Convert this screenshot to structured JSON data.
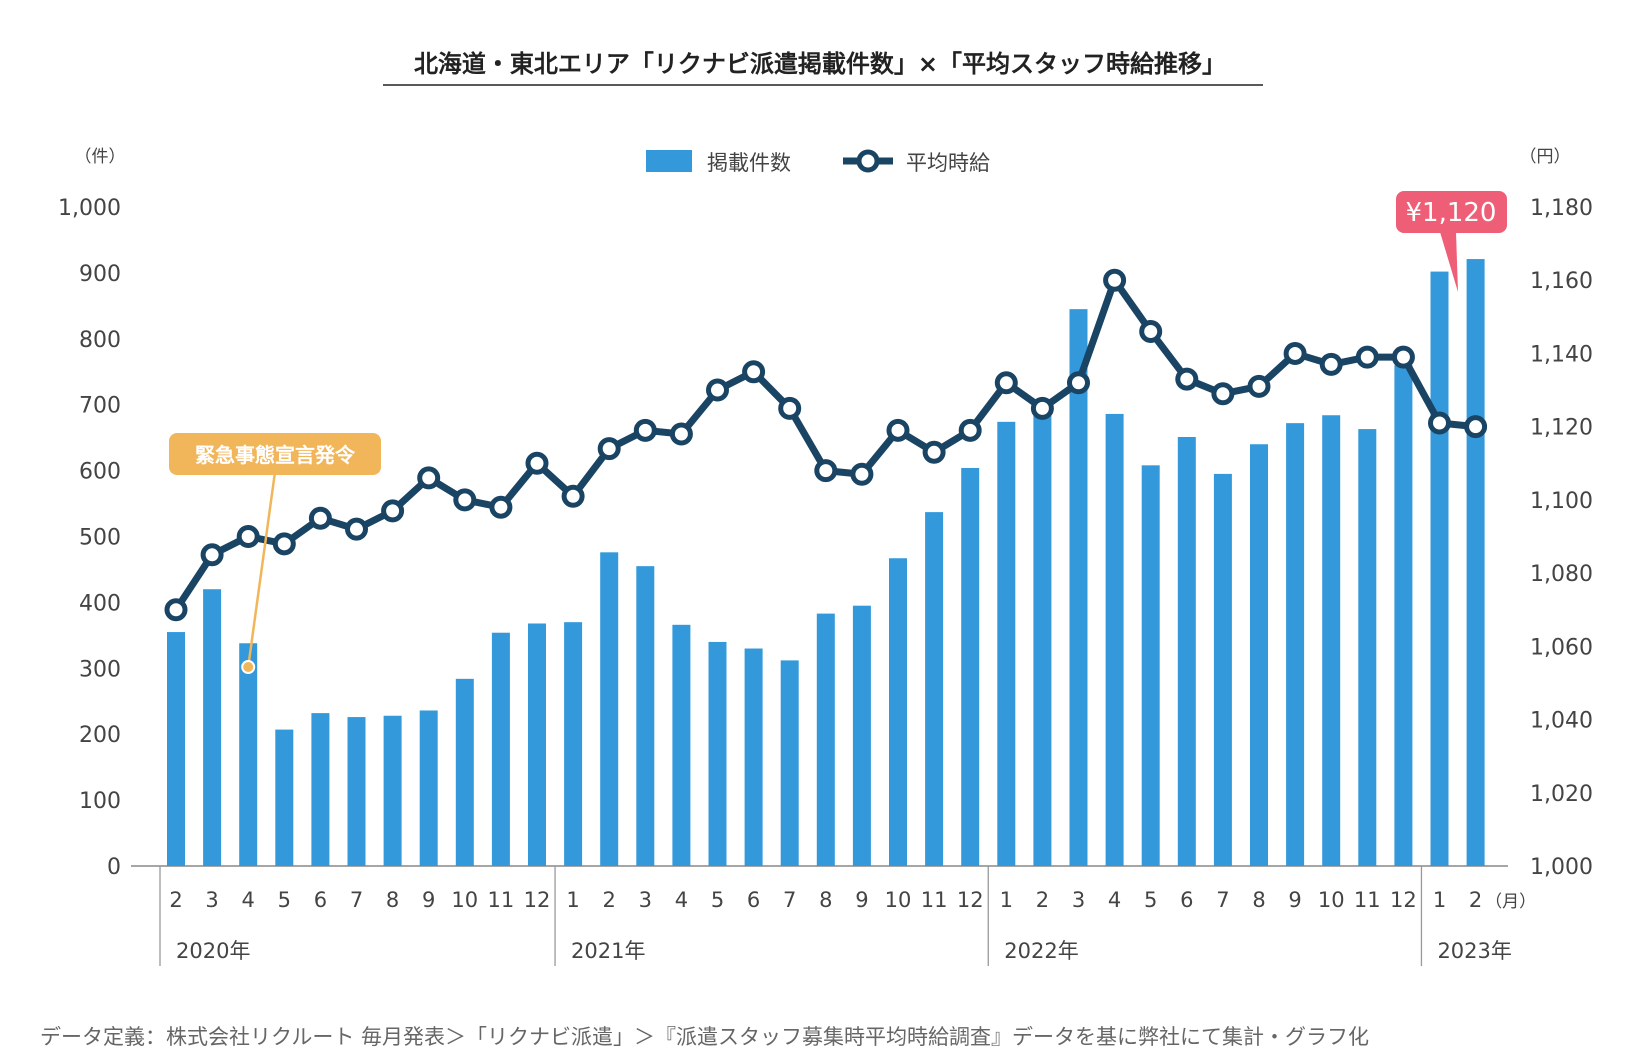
{
  "chart_data": {
    "type": "bar+line",
    "title": "北海道・東北エリア「リクナビ派遣掲載件数」×「平均スタッフ時給推移」",
    "left_unit": "（件）",
    "right_unit": "（円）",
    "month_unit": "（月）",
    "legend": [
      {
        "name": "掲載件数",
        "color": "#3399db",
        "kind": "bar"
      },
      {
        "name": "平均時給",
        "color": "#1a4464",
        "kind": "line"
      }
    ],
    "y_left": {
      "min": 0,
      "max": 1000,
      "ticks": [
        "0",
        "100",
        "200",
        "300",
        "400",
        "500",
        "600",
        "700",
        "800",
        "900",
        "1,000"
      ]
    },
    "y_right": {
      "min": 1000,
      "max": 1180,
      "ticks": [
        "1,000",
        "1,020",
        "1,040",
        "1,060",
        "1,080",
        "1,100",
        "1,120",
        "1,140",
        "1,160",
        "1,180"
      ]
    },
    "years": [
      {
        "label": "2020年",
        "start": 0,
        "end": 10
      },
      {
        "label": "2021年",
        "start": 11,
        "end": 22
      },
      {
        "label": "2022年",
        "start": 23,
        "end": 34
      },
      {
        "label": "2023年",
        "start": 35,
        "end": 36
      }
    ],
    "categories": [
      "2",
      "3",
      "4",
      "5",
      "6",
      "7",
      "8",
      "9",
      "10",
      "11",
      "12",
      "1",
      "2",
      "3",
      "4",
      "5",
      "6",
      "7",
      "8",
      "9",
      "10",
      "11",
      "12",
      "1",
      "2",
      "3",
      "4",
      "5",
      "6",
      "7",
      "8",
      "9",
      "10",
      "11",
      "12",
      "1",
      "2"
    ],
    "series": [
      {
        "name": "掲載件数",
        "axis": "left",
        "values": [
          355,
          420,
          338,
          207,
          232,
          226,
          228,
          236,
          284,
          354,
          368,
          370,
          476,
          455,
          366,
          340,
          330,
          312,
          383,
          395,
          467,
          537,
          604,
          674,
          690,
          845,
          686,
          608,
          651,
          595,
          640,
          672,
          684,
          663,
          760,
          902,
          921
        ]
      },
      {
        "name": "平均時給",
        "axis": "right",
        "values": [
          1070,
          1085,
          1090,
          1088,
          1095,
          1092,
          1097,
          1106,
          1100,
          1098,
          1110,
          1101,
          1114,
          1119,
          1118,
          1130,
          1135,
          1125,
          1108,
          1107,
          1119,
          1113,
          1119,
          1132,
          1125,
          1132,
          1160,
          1146,
          1133,
          1129,
          1131,
          1140,
          1137,
          1139,
          1139,
          1121,
          1120
        ]
      }
    ],
    "annotations": [
      {
        "text": "緊急事態宣言発令",
        "index": 2,
        "color": "#f2b65a"
      },
      {
        "text": "¥1,120",
        "index": 36,
        "color": "#ee5f77"
      }
    ],
    "footnote": "データ定義：株式会社リクルート 毎月発表＞「リクナビ派遣」＞『派遣スタッフ募集時平均時給調査』データを基に弊社にて集計・グラフ化"
  }
}
